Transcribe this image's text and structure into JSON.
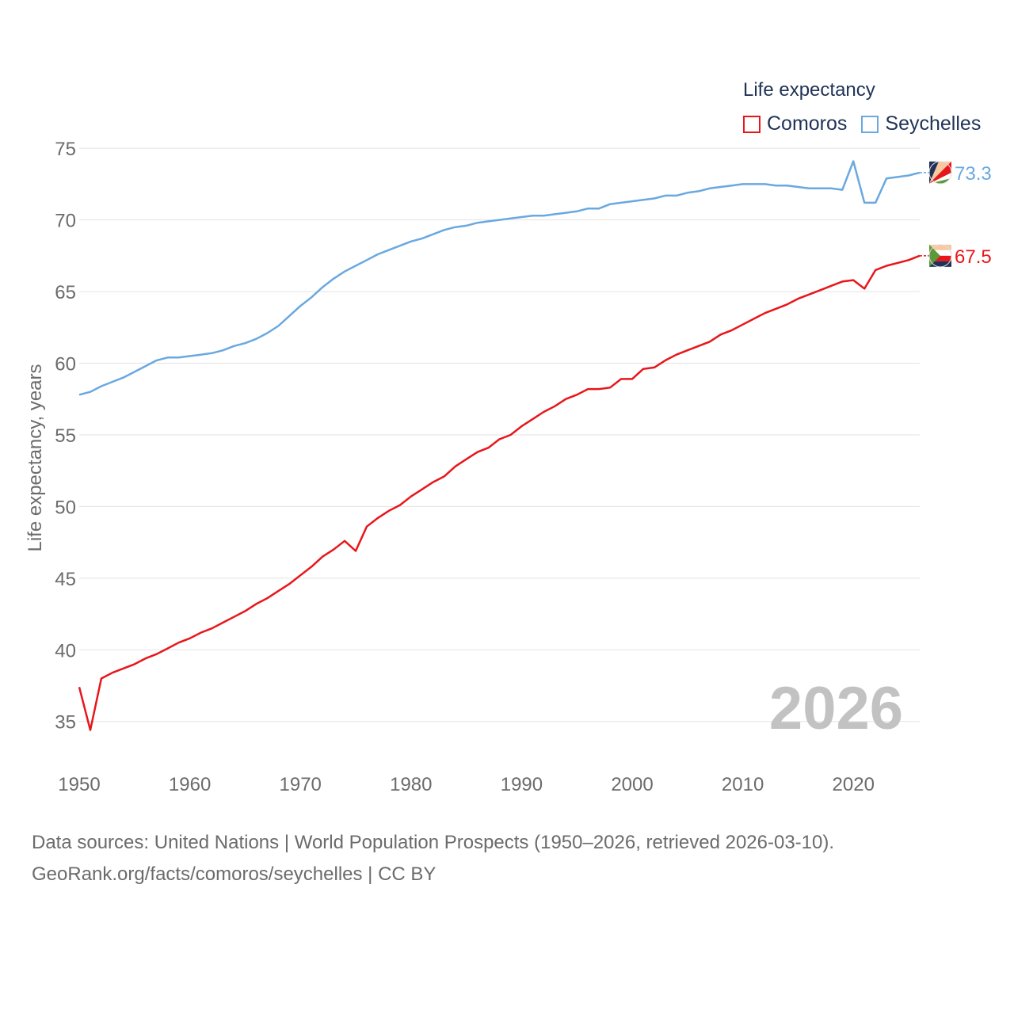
{
  "legend": {
    "title": "Life expectancy",
    "items": [
      {
        "label": "Comoros",
        "color": "#e8161b"
      },
      {
        "label": "Seychelles",
        "color": "#6aa8e0"
      }
    ]
  },
  "source": {
    "line1": "Data sources: United Nations | World Population Prospects (1950–2026, retrieved 2026-03-10).",
    "line2": "GeoRank.org/facts/comoros/seychelles | CC BY"
  },
  "chart_data": {
    "type": "line",
    "title": "Life expectancy",
    "xlabel": "",
    "ylabel": "Life expectancy, years",
    "xlim": [
      1950,
      2026
    ],
    "ylim": [
      32,
      77
    ],
    "yticks": [
      35,
      40,
      45,
      50,
      55,
      60,
      65,
      70,
      75
    ],
    "xticks": [
      1950,
      1960,
      1970,
      1980,
      1990,
      2000,
      2010,
      2020
    ],
    "year_label": "2026",
    "grid": true,
    "legend_position": "top-right",
    "x": [
      1950,
      1951,
      1952,
      1953,
      1954,
      1955,
      1956,
      1957,
      1958,
      1959,
      1960,
      1961,
      1962,
      1963,
      1964,
      1965,
      1966,
      1967,
      1968,
      1969,
      1970,
      1971,
      1972,
      1973,
      1974,
      1975,
      1976,
      1977,
      1978,
      1979,
      1980,
      1981,
      1982,
      1983,
      1984,
      1985,
      1986,
      1987,
      1988,
      1989,
      1990,
      1991,
      1992,
      1993,
      1994,
      1995,
      1996,
      1997,
      1998,
      1999,
      2000,
      2001,
      2002,
      2003,
      2004,
      2005,
      2006,
      2007,
      2008,
      2009,
      2010,
      2011,
      2012,
      2013,
      2014,
      2015,
      2016,
      2017,
      2018,
      2019,
      2020,
      2021,
      2022,
      2023,
      2024,
      2025,
      2026
    ],
    "series": [
      {
        "name": "Comoros",
        "color": "#e8161b",
        "end_label": "67.5",
        "values": [
          37.4,
          34.4,
          38.0,
          38.4,
          38.7,
          39.0,
          39.4,
          39.7,
          40.1,
          40.5,
          40.8,
          41.2,
          41.5,
          41.9,
          42.3,
          42.7,
          43.2,
          43.6,
          44.1,
          44.6,
          45.2,
          45.8,
          46.5,
          47.0,
          47.6,
          46.9,
          48.6,
          49.2,
          49.7,
          50.1,
          50.7,
          51.2,
          51.7,
          52.1,
          52.8,
          53.3,
          53.8,
          54.1,
          54.7,
          55.0,
          55.6,
          56.1,
          56.6,
          57.0,
          57.5,
          57.8,
          58.2,
          58.2,
          58.3,
          58.9,
          58.9,
          59.6,
          59.7,
          60.2,
          60.6,
          60.9,
          61.2,
          61.5,
          62.0,
          62.3,
          62.7,
          63.1,
          63.5,
          63.8,
          64.1,
          64.5,
          64.8,
          65.1,
          65.4,
          65.7,
          65.8,
          65.2,
          66.5,
          66.8,
          67.0,
          67.2,
          67.5
        ]
      },
      {
        "name": "Seychelles",
        "color": "#6aa8e0",
        "end_label": "73.3",
        "values": [
          57.8,
          58.0,
          58.4,
          58.7,
          59.0,
          59.4,
          59.8,
          60.2,
          60.4,
          60.4,
          60.5,
          60.6,
          60.7,
          60.9,
          61.2,
          61.4,
          61.7,
          62.1,
          62.6,
          63.3,
          64.0,
          64.6,
          65.3,
          65.9,
          66.4,
          66.8,
          67.2,
          67.6,
          67.9,
          68.2,
          68.5,
          68.7,
          69.0,
          69.3,
          69.5,
          69.6,
          69.8,
          69.9,
          70.0,
          70.1,
          70.2,
          70.3,
          70.3,
          70.4,
          70.5,
          70.6,
          70.8,
          70.8,
          71.1,
          71.2,
          71.3,
          71.4,
          71.5,
          71.7,
          71.7,
          71.9,
          72.0,
          72.2,
          72.3,
          72.4,
          72.5,
          72.5,
          72.5,
          72.4,
          72.4,
          72.3,
          72.2,
          72.2,
          72.2,
          72.1,
          74.1,
          71.2,
          71.2,
          72.9,
          73.0,
          73.1,
          73.3
        ]
      }
    ]
  }
}
